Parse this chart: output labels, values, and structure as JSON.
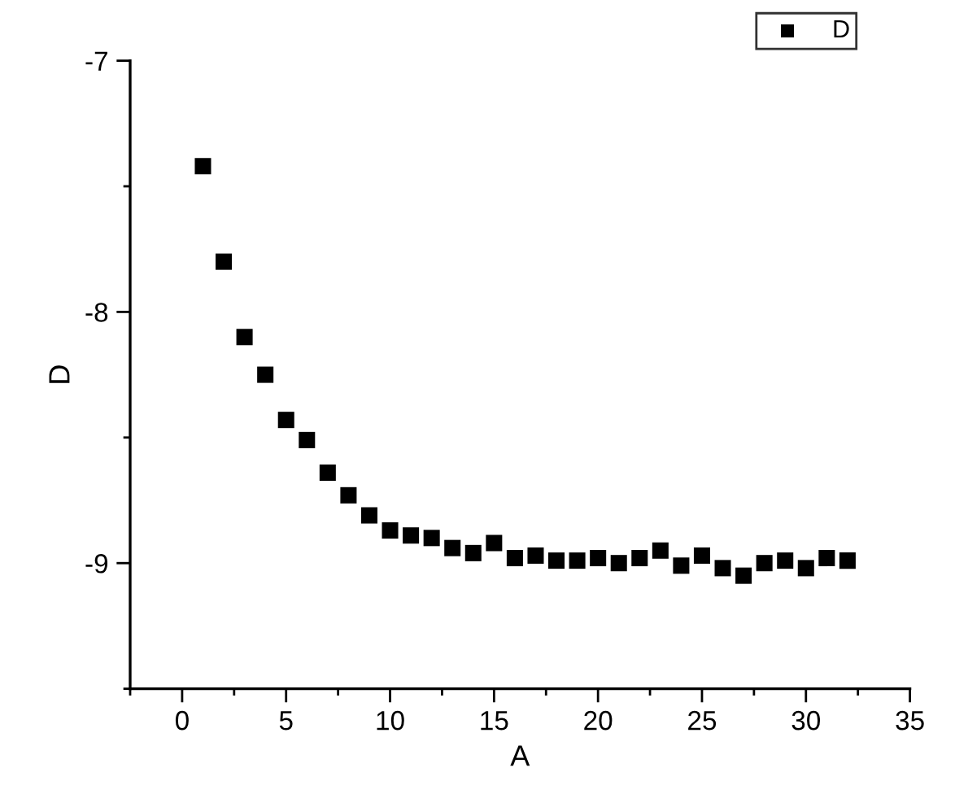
{
  "chart_data": {
    "type": "scatter",
    "xlabel": "A",
    "ylabel": "D",
    "x": [
      1,
      2,
      3,
      4,
      5,
      6,
      7,
      8,
      9,
      10,
      11,
      12,
      13,
      14,
      15,
      16,
      17,
      18,
      19,
      20,
      21,
      22,
      23,
      24,
      25,
      26,
      27,
      28,
      29,
      30,
      31,
      32
    ],
    "series": [
      {
        "name": "D",
        "color": "#000000",
        "values": [
          -7.42,
          -7.8,
          -8.1,
          -8.25,
          -8.43,
          -8.51,
          -8.64,
          -8.73,
          -8.81,
          -8.87,
          -8.89,
          -8.9,
          -8.94,
          -8.96,
          -8.92,
          -8.98,
          -8.97,
          -8.99,
          -8.99,
          -8.98,
          -9.0,
          -8.98,
          -8.95,
          -9.01,
          -8.97,
          -9.02,
          -9.05,
          -9.0,
          -8.99,
          -9.02,
          -8.98,
          -8.99
        ]
      }
    ],
    "xlim": [
      -2.5,
      35
    ],
    "xticks": [
      {
        "value": -2.5,
        "label": null
      },
      0,
      {
        "value": 2.5,
        "label": null
      },
      5,
      {
        "value": 7.5,
        "label": null
      },
      10,
      {
        "value": 12.5,
        "label": null
      },
      15,
      {
        "value": 17.5,
        "label": null
      },
      20,
      {
        "value": 22.5,
        "label": null
      },
      25,
      {
        "value": 27.5,
        "label": null
      },
      30,
      {
        "value": 32.5,
        "label": null
      },
      35
    ],
    "ylim": [
      -9.5,
      -7
    ],
    "yticks": [
      {
        "value": -9.5,
        "label": null
      },
      -9,
      {
        "value": -8.5,
        "label": null
      },
      -8,
      {
        "value": -7.5,
        "label": null
      },
      -7
    ],
    "marker": "square",
    "legend": "top right",
    "grid": false
  }
}
